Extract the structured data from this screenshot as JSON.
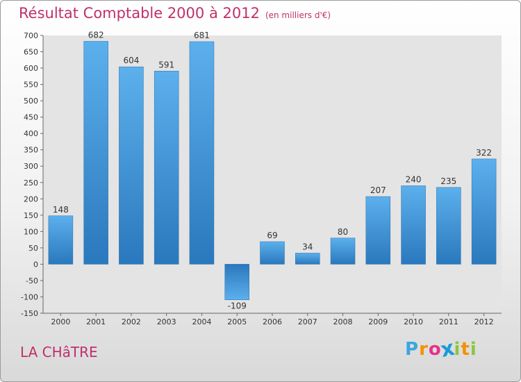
{
  "chart_data": {
    "type": "bar",
    "title": "Résultat Comptable 2000 à 2012",
    "subtitle": "(en milliers d'€)",
    "xlabel": "",
    "ylabel": "",
    "categories": [
      "2000",
      "2001",
      "2002",
      "2003",
      "2004",
      "2005",
      "2006",
      "2007",
      "2008",
      "2009",
      "2010",
      "2011",
      "2012"
    ],
    "values": [
      148,
      682,
      604,
      591,
      681,
      -109,
      69,
      34,
      80,
      207,
      240,
      235,
      322
    ],
    "ylim": [
      -150,
      700
    ],
    "yticks": [
      -150,
      -100,
      -50,
      0,
      50,
      100,
      150,
      200,
      250,
      300,
      350,
      400,
      450,
      500,
      550,
      600,
      650,
      700
    ],
    "grid": false,
    "bar_color": "#3b8fd4"
  },
  "footer": {
    "commune": "LA CHâTRE",
    "logo_letters": [
      "P",
      "r",
      "o",
      "x",
      "i",
      "t",
      "i"
    ],
    "logo_colors": [
      "#3aa7e0",
      "#f39200",
      "#e8308a",
      "#1a9bd7",
      "#8cc63f",
      "#f39200",
      "#8cc63f"
    ]
  }
}
